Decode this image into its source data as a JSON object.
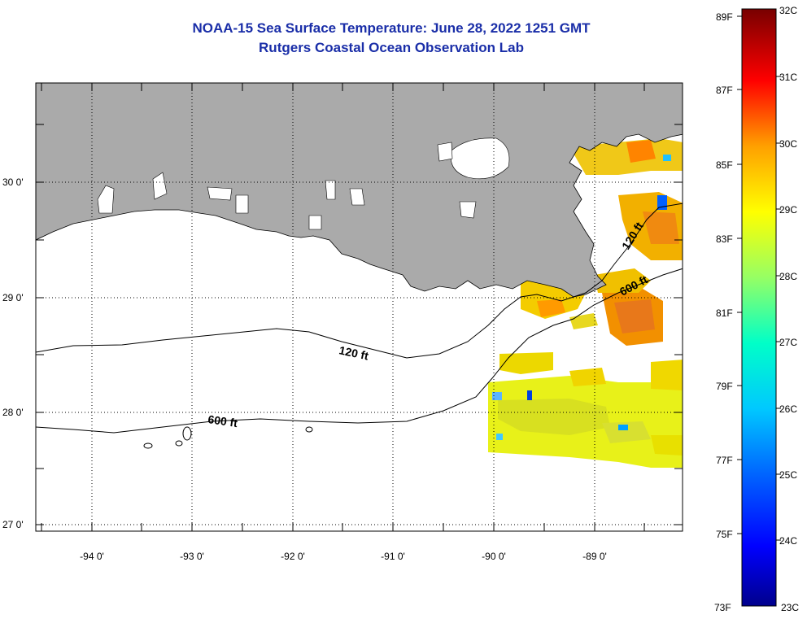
{
  "title_line1": "NOAA-15 Sea Surface Temperature:  June 28, 2022 1251 GMT",
  "title_line2": "Rutgers Coastal Ocean Observation Lab",
  "longitude_labels": [
    "-94 0'",
    "-93 0'",
    "-92 0'",
    "-91 0'",
    "-90 0'",
    "-89 0'"
  ],
  "latitude_labels": [
    "30 0'",
    "29 0'",
    "28 0'",
    "27 0'"
  ],
  "contour_labels": {
    "west_120": "120 ft",
    "east_120": "120 ft",
    "west_600": "600 ft",
    "east_600": "600 ft"
  },
  "colorbar": {
    "fahrenheit": [
      "89F",
      "87F",
      "85F",
      "83F",
      "81F",
      "79F",
      "77F",
      "75F",
      "73F"
    ],
    "celsius": [
      "32C",
      "31C",
      "30C",
      "29C",
      "28C",
      "27C",
      "26C",
      "25C",
      "24C",
      "23C"
    ]
  },
  "colors": {
    "title": "#1a2ea8",
    "land": "#aaaaaa",
    "ocean": "#ffffff"
  }
}
